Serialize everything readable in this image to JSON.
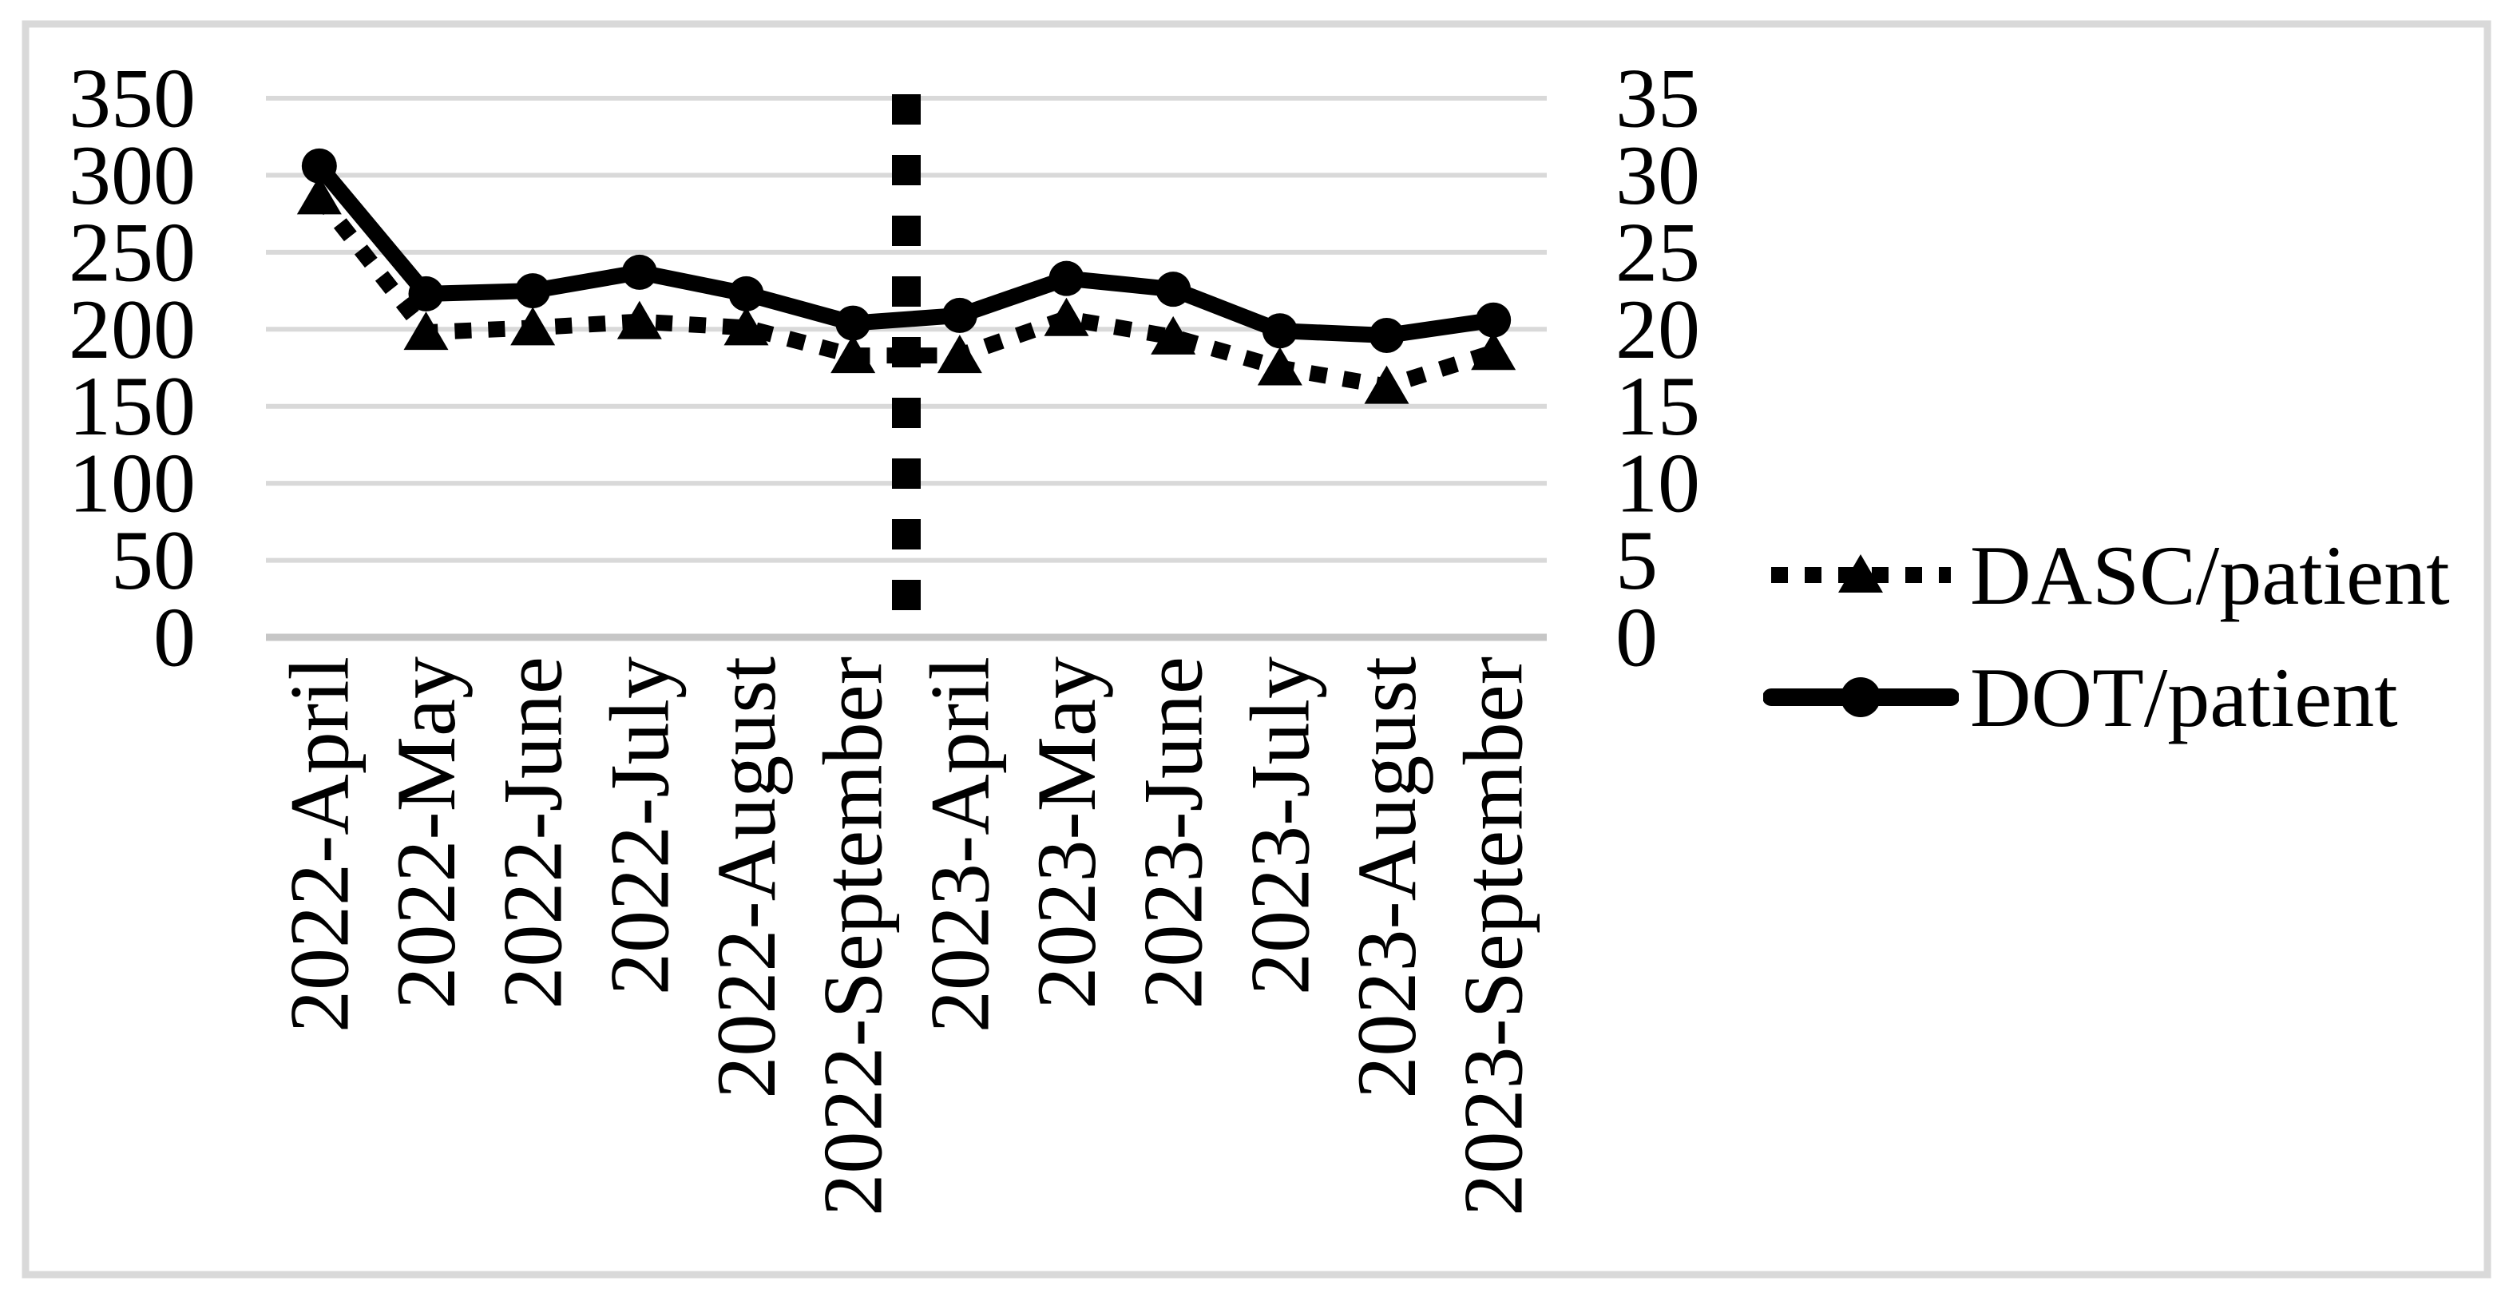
{
  "figure": {
    "background_color": "#ffffff",
    "border_color": "#d9d9d9",
    "series_color": "#000000",
    "gridline_color": "#d9d9d9",
    "axis_line_color": "#c6c6c6"
  },
  "chart_data": {
    "type": "line",
    "title": "",
    "xlabel": "",
    "ylabel_left": "",
    "ylabel_right": "",
    "grid": "horizontal",
    "legend_position": "right-middle",
    "categories": [
      "2022-April",
      "2022-May",
      "2022-June",
      "2022-July",
      "2022-August",
      "2022-September",
      "2023-April",
      "2023-May",
      "2023-June",
      "2023-July",
      "2023-August",
      "2023-September"
    ],
    "series": [
      {
        "name": "DASC/patient",
        "axis": "left",
        "line_style": "dotted",
        "marker": "triangle",
        "color": "#000000",
        "values": [
          286,
          198,
          201,
          205,
          201,
          183,
          183,
          207,
          195,
          175,
          163,
          185
        ]
      },
      {
        "name": "DOT/patient",
        "axis": "right",
        "line_style": "solid",
        "marker": "circle",
        "color": "#000000",
        "values": [
          30.6,
          22.3,
          22.5,
          23.7,
          22.3,
          20.4,
          20.9,
          23.3,
          22.6,
          19.9,
          19.6,
          20.6
        ]
      }
    ],
    "left_axis": {
      "min": 0,
      "max": 350,
      "ticks": [
        350,
        300,
        250,
        200,
        150,
        100,
        50,
        0
      ]
    },
    "right_axis": {
      "min": 0,
      "max": 35,
      "ticks": [
        35,
        30,
        25,
        20,
        15,
        10,
        5,
        0
      ]
    },
    "separator": {
      "style": "dashed",
      "color": "#000000",
      "after_category": "2022-September",
      "before_category": "2023-April"
    }
  }
}
